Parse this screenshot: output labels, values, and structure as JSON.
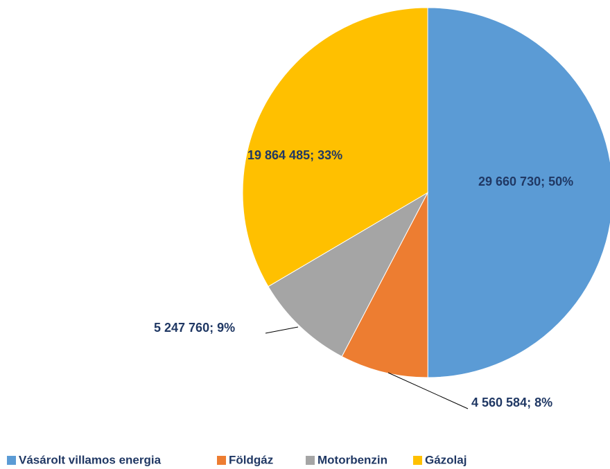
{
  "chart_data": {
    "type": "pie",
    "categories": [
      "Vásárolt villamos energia",
      "Földgáz",
      "Motorbenzin",
      "Gázolaj"
    ],
    "values": [
      29660730,
      4560584,
      5247760,
      19864485
    ],
    "value_labels": [
      "29 660 730; 50%",
      "4 560 584; 8%",
      "5 247 760; 9%",
      "19 864 485; 33%"
    ],
    "colors": [
      "#5b9bd5",
      "#ed7d31",
      "#a5a5a5",
      "#ffc000"
    ],
    "legend": "bottom"
  }
}
